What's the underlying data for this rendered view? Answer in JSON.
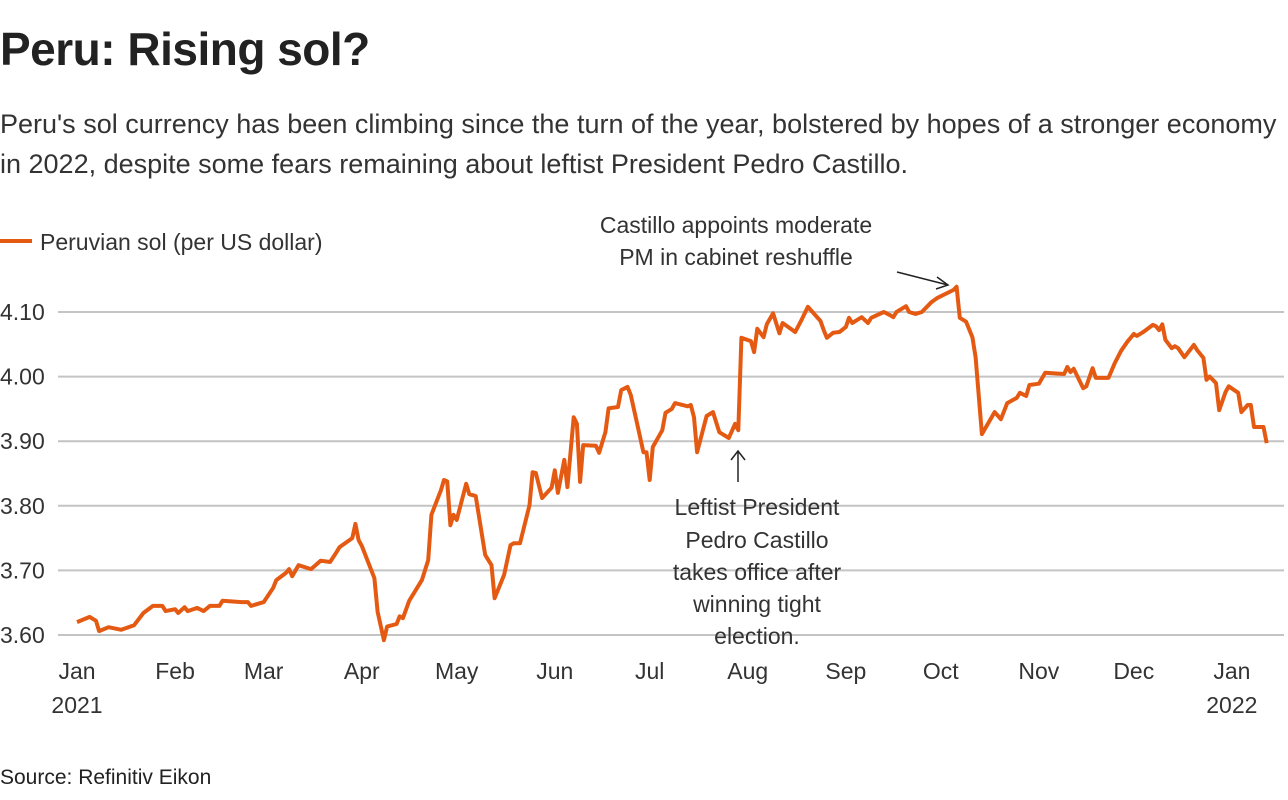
{
  "title": "Peru: Rising sol?",
  "subtitle": "Peru's sol currency has been climbing since the turn of the year, bolstered by hopes of a stronger economy in 2022, despite some fears remaining about leftist President Pedro Castillo.",
  "source": "Source: Refinitiv Eikon",
  "colors": {
    "line": "#e55a12",
    "grid": "#c4c4c4",
    "text": "#333333"
  },
  "chart_data": {
    "type": "line",
    "title": "Peru: Rising sol?",
    "xlabel": "",
    "ylabel": "",
    "ylim": [
      3.58,
      4.15
    ],
    "xlim": [
      "2021-01-01",
      "2022-01-14"
    ],
    "grid": "horizontal",
    "legend_placement": "top-left",
    "y_ticks": [
      "3.60",
      "3.70",
      "3.80",
      "3.90",
      "4.00",
      "4.10"
    ],
    "x_ticks": [
      {
        "date": "2021-01-01",
        "label": "Jan",
        "sub": "2021"
      },
      {
        "date": "2021-02-01",
        "label": "Feb"
      },
      {
        "date": "2021-03-01",
        "label": "Mar"
      },
      {
        "date": "2021-04-01",
        "label": "Apr"
      },
      {
        "date": "2021-05-01",
        "label": "May"
      },
      {
        "date": "2021-06-01",
        "label": "Jun"
      },
      {
        "date": "2021-07-01",
        "label": "Jul"
      },
      {
        "date": "2021-08-01",
        "label": "Aug"
      },
      {
        "date": "2021-09-01",
        "label": "Sep"
      },
      {
        "date": "2021-10-01",
        "label": "Oct"
      },
      {
        "date": "2021-11-01",
        "label": "Nov"
      },
      {
        "date": "2021-12-01",
        "label": "Dec"
      },
      {
        "date": "2022-01-01",
        "label": "Jan",
        "sub": "2022"
      }
    ],
    "series": [
      {
        "name": "Peruvian sol (per US dollar)",
        "points": [
          [
            "2021-01-01",
            3.62
          ],
          [
            "2021-01-05",
            3.628
          ],
          [
            "2021-01-07",
            3.622
          ],
          [
            "2021-01-08",
            3.606
          ],
          [
            "2021-01-11",
            3.612
          ],
          [
            "2021-01-15",
            3.608
          ],
          [
            "2021-01-19",
            3.615
          ],
          [
            "2021-01-22",
            3.634
          ],
          [
            "2021-01-25",
            3.645
          ],
          [
            "2021-01-28",
            3.645
          ],
          [
            "2021-01-29",
            3.637
          ],
          [
            "2021-02-01",
            3.64
          ],
          [
            "2021-02-02",
            3.634
          ],
          [
            "2021-02-04",
            3.643
          ],
          [
            "2021-02-05",
            3.637
          ],
          [
            "2021-02-08",
            3.642
          ],
          [
            "2021-02-10",
            3.637
          ],
          [
            "2021-02-12",
            3.645
          ],
          [
            "2021-02-15",
            3.645
          ],
          [
            "2021-02-16",
            3.653
          ],
          [
            "2021-02-22",
            3.651
          ],
          [
            "2021-02-24",
            3.651
          ],
          [
            "2021-02-25",
            3.645
          ],
          [
            "2021-03-01",
            3.651
          ],
          [
            "2021-03-04",
            3.673
          ],
          [
            "2021-03-05",
            3.685
          ],
          [
            "2021-03-08",
            3.696
          ],
          [
            "2021-03-09",
            3.702
          ],
          [
            "2021-03-10",
            3.691
          ],
          [
            "2021-03-12",
            3.708
          ],
          [
            "2021-03-16",
            3.702
          ],
          [
            "2021-03-19",
            3.715
          ],
          [
            "2021-03-22",
            3.713
          ],
          [
            "2021-03-24",
            3.728
          ],
          [
            "2021-03-25",
            3.736
          ],
          [
            "2021-03-29",
            3.75
          ],
          [
            "2021-03-30",
            3.772
          ],
          [
            "2021-03-31",
            3.747
          ],
          [
            "2021-04-01",
            3.738
          ],
          [
            "2021-04-05",
            3.688
          ],
          [
            "2021-04-06",
            3.636
          ],
          [
            "2021-04-08",
            3.592
          ],
          [
            "2021-04-09",
            3.613
          ],
          [
            "2021-04-12",
            3.617
          ],
          [
            "2021-04-13",
            3.629
          ],
          [
            "2021-04-14",
            3.626
          ],
          [
            "2021-04-16",
            3.653
          ],
          [
            "2021-04-20",
            3.685
          ],
          [
            "2021-04-22",
            3.716
          ],
          [
            "2021-04-23",
            3.786
          ],
          [
            "2021-04-26",
            3.824
          ],
          [
            "2021-04-27",
            3.84
          ],
          [
            "2021-04-28",
            3.838
          ],
          [
            "2021-04-29",
            3.77
          ],
          [
            "2021-04-30",
            3.786
          ],
          [
            "2021-05-01",
            3.778
          ],
          [
            "2021-05-04",
            3.834
          ],
          [
            "2021-05-05",
            3.818
          ],
          [
            "2021-05-07",
            3.815
          ],
          [
            "2021-05-10",
            3.724
          ],
          [
            "2021-05-12",
            3.708
          ],
          [
            "2021-05-13",
            3.657
          ],
          [
            "2021-05-16",
            3.693
          ],
          [
            "2021-05-18",
            3.739
          ],
          [
            "2021-05-19",
            3.742
          ],
          [
            "2021-05-21",
            3.742
          ],
          [
            "2021-05-24",
            3.801
          ],
          [
            "2021-05-25",
            3.852
          ],
          [
            "2021-05-26",
            3.851
          ],
          [
            "2021-05-28",
            3.812
          ],
          [
            "2021-05-31",
            3.828
          ],
          [
            "2021-06-01",
            3.855
          ],
          [
            "2021-06-02",
            3.82
          ],
          [
            "2021-06-04",
            3.871
          ],
          [
            "2021-06-05",
            3.829
          ],
          [
            "2021-06-07",
            3.937
          ],
          [
            "2021-06-08",
            3.927
          ],
          [
            "2021-06-09",
            3.837
          ],
          [
            "2021-06-10",
            3.894
          ],
          [
            "2021-06-14",
            3.893
          ],
          [
            "2021-06-15",
            3.882
          ],
          [
            "2021-06-17",
            3.914
          ],
          [
            "2021-06-18",
            3.951
          ],
          [
            "2021-06-21",
            3.953
          ],
          [
            "2021-06-22",
            3.979
          ],
          [
            "2021-06-24",
            3.984
          ],
          [
            "2021-06-25",
            3.972
          ],
          [
            "2021-06-27",
            3.928
          ],
          [
            "2021-06-29",
            3.883
          ],
          [
            "2021-06-30",
            3.883
          ],
          [
            "2021-07-01",
            3.84
          ],
          [
            "2021-07-02",
            3.891
          ],
          [
            "2021-07-05",
            3.917
          ],
          [
            "2021-07-06",
            3.944
          ],
          [
            "2021-07-08",
            3.95
          ],
          [
            "2021-07-09",
            3.959
          ],
          [
            "2021-07-13",
            3.954
          ],
          [
            "2021-07-14",
            3.956
          ],
          [
            "2021-07-15",
            3.937
          ],
          [
            "2021-07-16",
            3.883
          ],
          [
            "2021-07-19",
            3.939
          ],
          [
            "2021-07-21",
            3.945
          ],
          [
            "2021-07-23",
            3.914
          ],
          [
            "2021-07-26",
            3.905
          ],
          [
            "2021-07-28",
            3.927
          ],
          [
            "2021-07-29",
            3.917
          ],
          [
            "2021-07-30",
            4.06
          ],
          [
            "2021-08-02",
            4.055
          ],
          [
            "2021-08-03",
            4.038
          ],
          [
            "2021-08-04",
            4.074
          ],
          [
            "2021-08-06",
            4.061
          ],
          [
            "2021-08-07",
            4.081
          ],
          [
            "2021-08-09",
            4.098
          ],
          [
            "2021-08-11",
            4.067
          ],
          [
            "2021-08-12",
            4.083
          ],
          [
            "2021-08-16",
            4.069
          ],
          [
            "2021-08-18",
            4.088
          ],
          [
            "2021-08-20",
            4.108
          ],
          [
            "2021-08-24",
            4.086
          ],
          [
            "2021-08-25",
            4.072
          ],
          [
            "2021-08-26",
            4.06
          ],
          [
            "2021-08-28",
            4.068
          ],
          [
            "2021-08-30",
            4.069
          ],
          [
            "2021-09-01",
            4.077
          ],
          [
            "2021-09-02",
            4.091
          ],
          [
            "2021-09-03",
            4.083
          ],
          [
            "2021-09-06",
            4.092
          ],
          [
            "2021-09-08",
            4.083
          ],
          [
            "2021-09-09",
            4.091
          ],
          [
            "2021-09-13",
            4.1
          ],
          [
            "2021-09-15",
            4.095
          ],
          [
            "2021-09-16",
            4.092
          ],
          [
            "2021-09-17",
            4.1
          ],
          [
            "2021-09-20",
            4.109
          ],
          [
            "2021-09-21",
            4.1
          ],
          [
            "2021-09-23",
            4.097
          ],
          [
            "2021-09-25",
            4.1
          ],
          [
            "2021-09-28",
            4.115
          ],
          [
            "2021-09-30",
            4.122
          ],
          [
            "2021-10-05",
            4.134
          ],
          [
            "2021-10-06",
            4.139
          ],
          [
            "2021-10-07",
            4.091
          ],
          [
            "2021-10-09",
            4.085
          ],
          [
            "2021-10-11",
            4.061
          ],
          [
            "2021-10-12",
            4.03
          ],
          [
            "2021-10-14",
            3.911
          ],
          [
            "2021-10-18",
            3.945
          ],
          [
            "2021-10-20",
            3.934
          ],
          [
            "2021-10-22",
            3.959
          ],
          [
            "2021-10-25",
            3.967
          ],
          [
            "2021-10-26",
            3.975
          ],
          [
            "2021-10-28",
            3.97
          ],
          [
            "2021-10-29",
            3.987
          ],
          [
            "2021-11-01",
            3.989
          ],
          [
            "2021-11-03",
            4.006
          ],
          [
            "2021-11-09",
            4.004
          ],
          [
            "2021-11-10",
            4.015
          ],
          [
            "2021-11-11",
            4.007
          ],
          [
            "2021-11-12",
            4.012
          ],
          [
            "2021-11-15",
            3.982
          ],
          [
            "2021-11-16",
            3.985
          ],
          [
            "2021-11-18",
            4.013
          ],
          [
            "2021-11-19",
            3.998
          ],
          [
            "2021-11-23",
            3.998
          ],
          [
            "2021-11-25",
            4.021
          ],
          [
            "2021-11-27",
            4.04
          ],
          [
            "2021-11-29",
            4.054
          ],
          [
            "2021-12-01",
            4.066
          ],
          [
            "2021-12-02",
            4.063
          ],
          [
            "2021-12-04",
            4.069
          ],
          [
            "2021-12-07",
            4.08
          ],
          [
            "2021-12-08",
            4.078
          ],
          [
            "2021-12-09",
            4.072
          ],
          [
            "2021-12-10",
            4.081
          ],
          [
            "2021-12-11",
            4.057
          ],
          [
            "2021-12-13",
            4.044
          ],
          [
            "2021-12-14",
            4.047
          ],
          [
            "2021-12-15",
            4.044
          ],
          [
            "2021-12-17",
            4.03
          ],
          [
            "2021-12-20",
            4.049
          ],
          [
            "2021-12-21",
            4.041
          ],
          [
            "2021-12-23",
            4.029
          ],
          [
            "2021-12-24",
            3.995
          ],
          [
            "2021-12-25",
            4.0
          ],
          [
            "2021-12-27",
            3.99
          ],
          [
            "2021-12-28",
            3.948
          ],
          [
            "2021-12-30",
            3.976
          ],
          [
            "2021-12-31",
            3.985
          ],
          [
            "2022-01-03",
            3.975
          ],
          [
            "2022-01-04",
            3.945
          ],
          [
            "2022-01-06",
            3.956
          ],
          [
            "2022-01-07",
            3.956
          ],
          [
            "2022-01-08",
            3.922
          ],
          [
            "2022-01-11",
            3.922
          ],
          [
            "2022-01-12",
            3.897
          ]
        ]
      }
    ],
    "annotations": [
      {
        "lines": [
          "Castillo appoints moderate",
          "PM in cabinet reshuffle"
        ],
        "date": "2021-10-06"
      },
      {
        "lines": [
          "Leftist President",
          "Pedro Castillo",
          "takes office after",
          "winning tight",
          "election."
        ],
        "date": "2021-07-28"
      }
    ]
  }
}
